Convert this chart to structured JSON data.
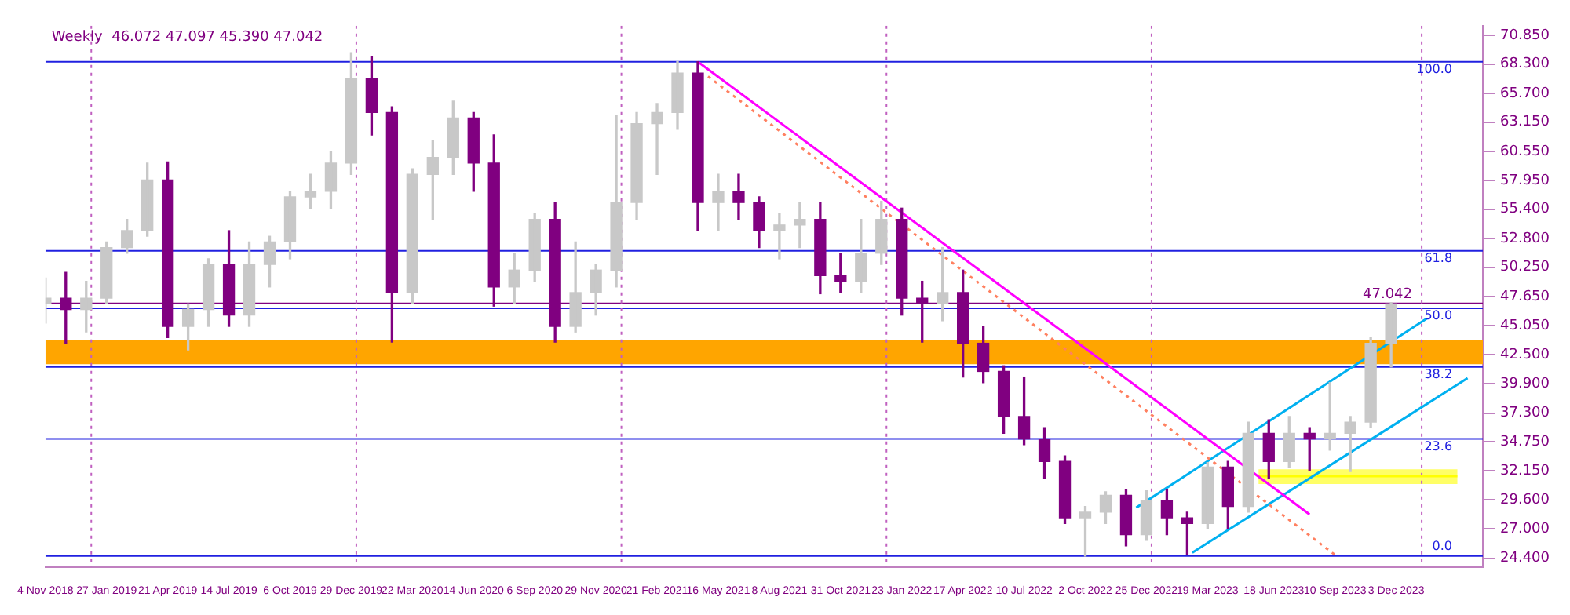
{
  "chart_data": {
    "type": "candlestick",
    "title": "Weekly  46.072 47.097 45.390 47.042",
    "x": [
      "2018-11-04",
      "2018-12-02",
      "2018-12-30",
      "2019-01-27",
      "2019-02-24",
      "2019-03-24",
      "2019-04-21",
      "2019-05-19",
      "2019-06-16",
      "2019-07-14",
      "2019-08-11",
      "2019-09-08",
      "2019-10-06",
      "2019-11-03",
      "2019-12-01",
      "2019-12-29",
      "2020-01-26",
      "2020-02-23",
      "2020-03-22",
      "2020-04-19",
      "2020-05-17",
      "2020-06-14",
      "2020-07-12",
      "2020-08-09",
      "2020-09-06",
      "2020-10-04",
      "2020-11-01",
      "2020-11-29",
      "2020-12-27",
      "2021-01-24",
      "2021-02-21",
      "2021-03-21",
      "2021-04-18",
      "2021-05-16",
      "2021-06-13",
      "2021-07-11",
      "2021-08-08",
      "2021-09-05",
      "2021-10-03",
      "2021-10-31",
      "2021-11-28",
      "2021-12-26",
      "2022-01-23",
      "2022-02-20",
      "2022-03-20",
      "2022-04-17",
      "2022-05-15",
      "2022-06-12",
      "2022-07-10",
      "2022-08-07",
      "2022-09-04",
      "2022-10-02",
      "2022-10-30",
      "2022-11-27",
      "2022-12-25",
      "2023-01-22",
      "2023-02-19",
      "2023-03-19",
      "2023-04-16",
      "2023-05-14",
      "2023-06-11",
      "2023-07-09",
      "2023-08-06",
      "2023-09-03",
      "2023-10-01",
      "2023-10-29",
      "2023-11-26"
    ],
    "ohlc": [
      [
        47.0,
        49.3,
        45.3,
        47.5
      ],
      [
        47.5,
        49.8,
        43.5,
        46.5
      ],
      [
        46.5,
        49.0,
        44.5,
        47.5
      ],
      [
        47.5,
        52.5,
        47.0,
        52.0
      ],
      [
        52.0,
        54.5,
        51.5,
        53.5
      ],
      [
        53.5,
        59.5,
        53.0,
        58.0
      ],
      [
        58.0,
        59.6,
        44.0,
        45.0
      ],
      [
        45.0,
        47.0,
        42.9,
        46.5
      ],
      [
        46.5,
        51.0,
        45.0,
        50.5
      ],
      [
        50.5,
        53.5,
        45.0,
        46.0
      ],
      [
        46.0,
        52.5,
        45.0,
        50.5
      ],
      [
        50.5,
        53.0,
        48.5,
        52.5
      ],
      [
        52.5,
        57.0,
        51.0,
        56.5
      ],
      [
        56.5,
        58.5,
        55.5,
        57.0
      ],
      [
        57.0,
        60.5,
        55.5,
        59.5
      ],
      [
        59.5,
        69.3,
        58.5,
        67.0
      ],
      [
        67.0,
        69.0,
        62.0,
        64.0
      ],
      [
        64.0,
        64.5,
        43.6,
        48.0
      ],
      [
        48.0,
        59.0,
        47.0,
        58.5
      ],
      [
        58.5,
        61.5,
        54.5,
        60.0
      ],
      [
        60.0,
        65.0,
        58.5,
        63.5
      ],
      [
        63.5,
        64.0,
        57.0,
        59.5
      ],
      [
        59.5,
        62.0,
        46.8,
        48.5
      ],
      [
        48.5,
        51.5,
        47.0,
        50.0
      ],
      [
        50.0,
        55.0,
        49.0,
        54.5
      ],
      [
        54.5,
        56.0,
        43.6,
        45.0
      ],
      [
        45.0,
        52.5,
        44.5,
        48.0
      ],
      [
        48.0,
        50.5,
        46.0,
        50.0
      ],
      [
        50.0,
        63.7,
        48.5,
        56.0
      ],
      [
        56.0,
        64.0,
        54.5,
        63.0
      ],
      [
        63.0,
        64.8,
        58.5,
        64.0
      ],
      [
        64.0,
        68.5,
        62.5,
        67.5
      ],
      [
        67.5,
        68.5,
        53.5,
        56.0
      ],
      [
        56.0,
        58.5,
        53.5,
        57.0
      ],
      [
        57.0,
        58.5,
        54.5,
        56.0
      ],
      [
        56.0,
        56.5,
        52.0,
        53.5
      ],
      [
        53.5,
        55.0,
        51.0,
        54.0
      ],
      [
        54.0,
        56.0,
        52.0,
        54.5
      ],
      [
        54.5,
        56.0,
        47.9,
        49.5
      ],
      [
        49.5,
        51.5,
        48.0,
        49.0
      ],
      [
        49.0,
        54.5,
        48.0,
        51.5
      ],
      [
        51.5,
        56.1,
        50.5,
        54.5
      ],
      [
        54.5,
        55.5,
        46.0,
        47.5
      ],
      [
        47.5,
        49.0,
        43.6,
        47.0
      ],
      [
        47.0,
        52.0,
        45.5,
        48.0
      ],
      [
        48.0,
        50.0,
        40.5,
        43.5
      ],
      [
        43.5,
        45.0,
        40.0,
        41.0
      ],
      [
        41.0,
        41.5,
        35.5,
        37.0
      ],
      [
        37.0,
        40.5,
        34.5,
        35.0
      ],
      [
        35.0,
        36.0,
        31.5,
        33.0
      ],
      [
        33.0,
        33.5,
        27.5,
        28.0
      ],
      [
        28.0,
        29.0,
        24.6,
        28.5
      ],
      [
        28.5,
        30.3,
        27.5,
        30.0
      ],
      [
        30.0,
        30.5,
        25.5,
        26.5
      ],
      [
        26.5,
        30.4,
        26.0,
        29.5
      ],
      [
        29.5,
        30.5,
        26.5,
        28.0
      ],
      [
        28.0,
        28.5,
        24.7,
        27.5
      ],
      [
        27.5,
        32.9,
        27.0,
        32.5
      ],
      [
        32.5,
        33.0,
        27.0,
        29.0
      ],
      [
        29.0,
        36.5,
        28.5,
        35.5
      ],
      [
        35.5,
        36.7,
        31.5,
        33.0
      ],
      [
        33.0,
        37.0,
        32.5,
        35.5
      ],
      [
        35.5,
        36.0,
        32.2,
        35.0
      ],
      [
        35.0,
        40.0,
        34.0,
        35.5
      ],
      [
        35.5,
        37.0,
        32.1,
        36.5
      ],
      [
        36.5,
        44.0,
        36.0,
        43.5
      ],
      [
        43.5,
        47.1,
        41.4,
        47.0
      ]
    ],
    "colors": [
      "#c8c8c8",
      "#800080",
      "#c8c8c8",
      "#c8c8c8",
      "#c8c8c8",
      "#c8c8c8",
      "#800080",
      "#c8c8c8",
      "#c8c8c8",
      "#800080",
      "#c8c8c8",
      "#c8c8c8",
      "#c8c8c8",
      "#c8c8c8",
      "#c8c8c8",
      "#c8c8c8",
      "#800080",
      "#800080",
      "#c8c8c8",
      "#c8c8c8",
      "#c8c8c8",
      "#800080",
      "#800080",
      "#c8c8c8",
      "#c8c8c8",
      "#800080",
      "#c8c8c8",
      "#c8c8c8",
      "#c8c8c8",
      "#c8c8c8",
      "#c8c8c8",
      "#c8c8c8",
      "#800080",
      "#c8c8c8",
      "#800080",
      "#800080",
      "#c8c8c8",
      "#c8c8c8",
      "#800080",
      "#800080",
      "#c8c8c8",
      "#c8c8c8",
      "#800080",
      "#800080",
      "#c8c8c8",
      "#800080",
      "#800080",
      "#800080",
      "#800080",
      "#800080",
      "#800080",
      "#c8c8c8",
      "#c8c8c8",
      "#800080",
      "#c8c8c8",
      "#800080",
      "#800080",
      "#c8c8c8",
      "#800080",
      "#c8c8c8",
      "#800080",
      "#c8c8c8",
      "#800080",
      "#c8c8c8",
      "#c8c8c8",
      "#c8c8c8",
      "#c8c8c8"
    ],
    "series": [
      {
        "type": "line",
        "x": [
          "2021-04-18",
          "2023-08-06"
        ],
        "values": [
          68.5,
          28.3
        ],
        "color": "#ff00ff",
        "line_style": "solid"
      },
      {
        "type": "line",
        "x": [
          "2021-05-02",
          "2023-09-10"
        ],
        "values": [
          67.2,
          24.7
        ],
        "color": "#ff8060",
        "line_style": "dotted"
      },
      {
        "type": "line",
        "x": [
          "2022-12-11",
          "2024-01-14"
        ],
        "values": [
          28.9,
          45.7
        ],
        "color": "#00b0f0",
        "line_style": "solid"
      },
      {
        "type": "line",
        "x": [
          "2023-02-26",
          "2024-03-10"
        ],
        "values": [
          24.9,
          40.4
        ],
        "color": "#00b0f0",
        "line_style": "solid"
      },
      {
        "type": "line",
        "x": [
          "2023-05-28",
          "2024-02-25"
        ],
        "values": [
          31.7,
          31.7
        ],
        "lower": [
          31.0,
          31.0
        ],
        "upper": [
          32.3,
          32.3
        ],
        "color": "#ffff00"
      }
    ],
    "bands": [
      {
        "axis": "y",
        "from": 41.64,
        "to": 43.76,
        "color": "#ffa500"
      }
    ],
    "ref_lines": [
      {
        "axis": "y",
        "value": 68.5,
        "color": "#2020e0"
      },
      {
        "axis": "y",
        "value": 51.7,
        "color": "#2020e0"
      },
      {
        "axis": "y",
        "value": 46.6,
        "color": "#2020e0"
      },
      {
        "axis": "y",
        "value": 41.4,
        "color": "#2020e0"
      },
      {
        "axis": "y",
        "value": 35.0,
        "color": "#2020e0"
      },
      {
        "axis": "y",
        "value": 24.6,
        "color": "#2020e0"
      },
      {
        "axis": "y",
        "value": 47.042,
        "label": "47.042",
        "color": "#800080"
      },
      {
        "axis": "x",
        "value": "2019-01-06",
        "color": "#c060c0",
        "line_style": "dotted"
      },
      {
        "axis": "x",
        "value": "2020-01-05",
        "color": "#c060c0",
        "line_style": "dotted"
      },
      {
        "axis": "x",
        "value": "2021-01-03",
        "color": "#c060c0",
        "line_style": "dotted"
      },
      {
        "axis": "x",
        "value": "2022-01-02",
        "color": "#c060c0",
        "line_style": "dotted"
      },
      {
        "axis": "x",
        "value": "2023-01-01",
        "color": "#c060c0",
        "line_style": "dotted"
      },
      {
        "axis": "x",
        "value": "2024-01-07",
        "color": "#c060c0",
        "line_style": "dotted"
      }
    ],
    "annotations": [
      {
        "text": "100.0",
        "x": "2024-02-18",
        "y": 68.5
      },
      {
        "text": "61.8",
        "x": "2024-02-18",
        "y": 51.7
      },
      {
        "text": "50.0",
        "x": "2024-02-18",
        "y": 46.6
      },
      {
        "text": "38.2",
        "x": "2024-02-18",
        "y": 41.4
      },
      {
        "text": "23.6",
        "x": "2024-02-18",
        "y": 35.0
      },
      {
        "text": "0.0",
        "x": "2024-02-18",
        "y": 24.6
      }
    ],
    "xlim": [
      "2018-11-04",
      "2024-03-31"
    ],
    "xticks": [
      {
        "value": "2018-11-04",
        "label": "4 Nov 2018"
      },
      {
        "value": "2019-01-27",
        "label": "27 Jan 2019"
      },
      {
        "value": "2019-04-21",
        "label": "21 Apr 2019"
      },
      {
        "value": "2019-07-14",
        "label": "14 Jul 2019"
      },
      {
        "value": "2019-10-06",
        "label": "6 Oct 2019"
      },
      {
        "value": "2019-12-29",
        "label": "29 Dec 2019"
      },
      {
        "value": "2020-03-22",
        "label": "22 Mar 2020"
      },
      {
        "value": "2020-06-14",
        "label": "14 Jun 2020"
      },
      {
        "value": "2020-09-06",
        "label": "6 Sep 2020"
      },
      {
        "value": "2020-11-29",
        "label": "29 Nov 2020"
      },
      {
        "value": "2021-02-21",
        "label": "21 Feb 2021"
      },
      {
        "value": "2021-05-16",
        "label": "16 May 2021"
      },
      {
        "value": "2021-08-08",
        "label": "8 Aug 2021"
      },
      {
        "value": "2021-10-31",
        "label": "31 Oct 2021"
      },
      {
        "value": "2022-01-23",
        "label": "23 Jan 2022"
      },
      {
        "value": "2022-04-17",
        "label": "17 Apr 2022"
      },
      {
        "value": "2022-07-10",
        "label": "10 Jul 2022"
      },
      {
        "value": "2022-10-02",
        "label": "2 Oct 2022"
      },
      {
        "value": "2022-12-25",
        "label": "25 Dec 2022"
      },
      {
        "value": "2023-03-19",
        "label": "19 Mar 2023"
      },
      {
        "value": "2023-06-18",
        "label": "18 Jun 2023"
      },
      {
        "value": "2023-09-10",
        "label": "10 Sep 2023"
      },
      {
        "value": "2023-12-03",
        "label": "3 Dec 2023"
      }
    ],
    "ylim": [
      23.6,
      71.7
    ],
    "yticks": [
      {
        "value": 24.4,
        "label": "24.400"
      },
      {
        "value": 27.0,
        "label": "27.000"
      },
      {
        "value": 29.6,
        "label": "29.600"
      },
      {
        "value": 32.15,
        "label": "32.150"
      },
      {
        "value": 34.75,
        "label": "34.750"
      },
      {
        "value": 37.3,
        "label": "37.300"
      },
      {
        "value": 39.9,
        "label": "39.900"
      },
      {
        "value": 42.5,
        "label": "42.500"
      },
      {
        "value": 45.05,
        "label": "45.050"
      },
      {
        "value": 47.65,
        "label": "47.650"
      },
      {
        "value": 50.25,
        "label": "50.250"
      },
      {
        "value": 52.8,
        "label": "52.800"
      },
      {
        "value": 55.4,
        "label": "55.400"
      },
      {
        "value": 57.95,
        "label": "57.950"
      },
      {
        "value": 60.55,
        "label": "60.550"
      },
      {
        "value": 63.15,
        "label": "63.150"
      },
      {
        "value": 65.7,
        "label": "65.700"
      },
      {
        "value": 68.3,
        "label": "68.300"
      },
      {
        "value": 70.85,
        "label": "70.850"
      }
    ],
    "grid": false,
    "legend": false
  }
}
